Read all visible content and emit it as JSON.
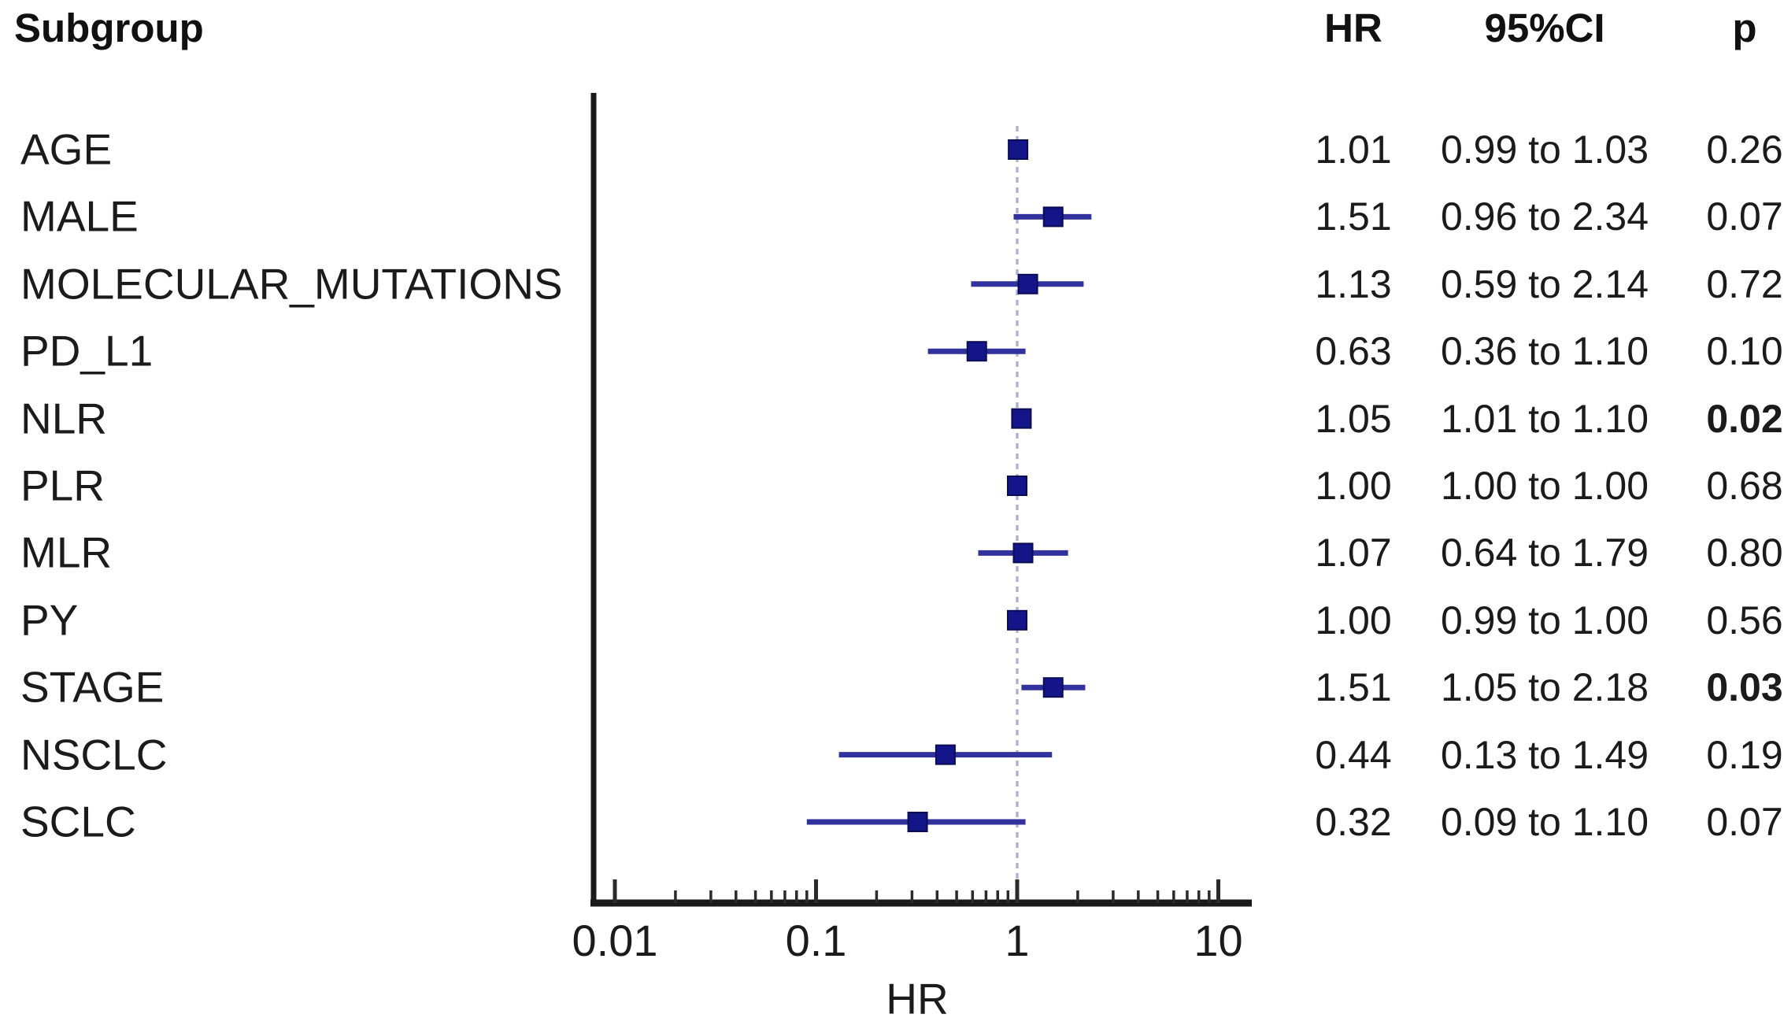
{
  "header": {
    "subgroup": "Subgroup",
    "hr": "HR",
    "ci": "95%CI",
    "p": "p"
  },
  "chart_data": {
    "type": "forest",
    "xlabel": "HR",
    "x_axis": {
      "scale": "log10",
      "min": 0.01,
      "max": 10,
      "major_ticks": [
        0.01,
        0.1,
        1,
        10
      ],
      "tick_labels": [
        "0.01",
        "0.1",
        "1",
        "10"
      ],
      "reference_line": 1,
      "minor_ticks_per_decade": [
        2,
        3,
        4,
        5,
        6,
        7,
        8,
        9
      ]
    },
    "colors": {
      "marker": "#15158a",
      "marker_edge": "#0c0c55",
      "ci_line": "#32329e",
      "reference_line": "#b0b0d4",
      "axis": "#1a1a1a",
      "text": "#1b1b1b"
    },
    "rows": [
      {
        "label": "AGE",
        "hr": 1.01,
        "hr_text": "1.01",
        "ci_lo": 0.99,
        "ci_hi": 1.03,
        "ci_text": "0.99 to 1.03",
        "p": "0.26",
        "p_bold": false
      },
      {
        "label": "MALE",
        "hr": 1.51,
        "hr_text": "1.51",
        "ci_lo": 0.96,
        "ci_hi": 2.34,
        "ci_text": "0.96 to 2.34",
        "p": "0.07",
        "p_bold": false
      },
      {
        "label": "MOLECULAR_MUTATIONS",
        "hr": 1.13,
        "hr_text": "1.13",
        "ci_lo": 0.59,
        "ci_hi": 2.14,
        "ci_text": "0.59 to 2.14",
        "p": "0.72",
        "p_bold": false
      },
      {
        "label": "PD_L1",
        "hr": 0.63,
        "hr_text": "0.63",
        "ci_lo": 0.36,
        "ci_hi": 1.1,
        "ci_text": "0.36 to 1.10",
        "p": "0.10",
        "p_bold": false
      },
      {
        "label": "NLR",
        "hr": 1.05,
        "hr_text": "1.05",
        "ci_lo": 1.01,
        "ci_hi": 1.1,
        "ci_text": "1.01 to 1.10",
        "p": "0.02",
        "p_bold": true
      },
      {
        "label": "PLR",
        "hr": 1.0,
        "hr_text": "1.00",
        "ci_lo": 1.0,
        "ci_hi": 1.0,
        "ci_text": "1.00 to 1.00",
        "p": "0.68",
        "p_bold": false
      },
      {
        "label": "MLR",
        "hr": 1.07,
        "hr_text": "1.07",
        "ci_lo": 0.64,
        "ci_hi": 1.79,
        "ci_text": "0.64 to 1.79",
        "p": "0.80",
        "p_bold": false
      },
      {
        "label": "PY",
        "hr": 1.0,
        "hr_text": "1.00",
        "ci_lo": 0.99,
        "ci_hi": 1.0,
        "ci_text": "0.99 to 1.00",
        "p": "0.56",
        "p_bold": false
      },
      {
        "label": "STAGE",
        "hr": 1.51,
        "hr_text": "1.51",
        "ci_lo": 1.05,
        "ci_hi": 2.18,
        "ci_text": "1.05 to 2.18",
        "p": "0.03",
        "p_bold": true
      },
      {
        "label": "NSCLC",
        "hr": 0.44,
        "hr_text": "0.44",
        "ci_lo": 0.13,
        "ci_hi": 1.49,
        "ci_text": "0.13 to 1.49",
        "p": "0.19",
        "p_bold": false
      },
      {
        "label": "SCLC",
        "hr": 0.32,
        "hr_text": "0.32",
        "ci_lo": 0.09,
        "ci_hi": 1.1,
        "ci_text": "0.09 to 1.10",
        "p": "0.07",
        "p_bold": false
      }
    ]
  }
}
